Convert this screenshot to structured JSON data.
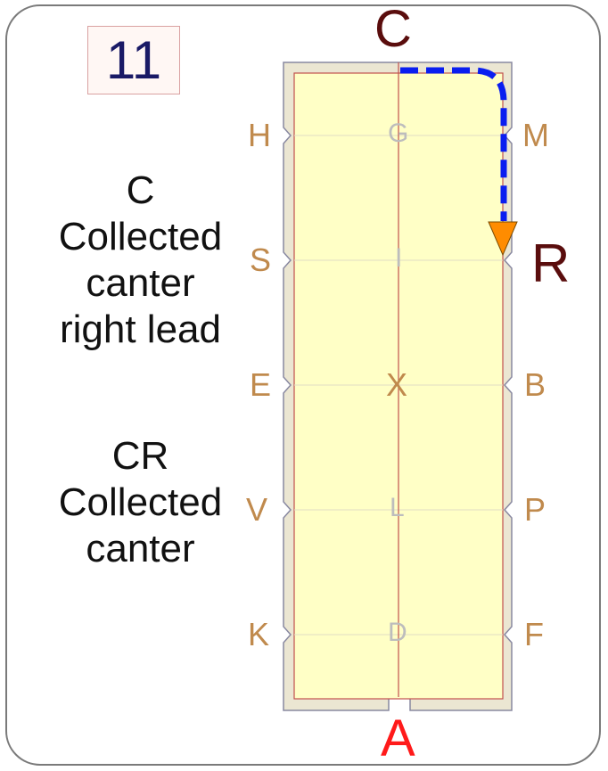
{
  "card_number": "11",
  "movement_1": {
    "code": "C",
    "lines": [
      "Collected",
      "canter",
      "right lead"
    ]
  },
  "movement_2": {
    "code": "CR",
    "lines": [
      "Collected",
      "canter"
    ]
  },
  "arena": {
    "top_letter": "C",
    "bottom_letter": "A",
    "center_letters": [
      "G",
      "I",
      "X",
      "L",
      "D"
    ],
    "left_letters": [
      "H",
      "S",
      "E",
      "V",
      "K"
    ],
    "right_letters": [
      "M",
      "R",
      "B",
      "P",
      "F"
    ]
  },
  "colors": {
    "arena_fill": "#ffffc6",
    "letter": "#c08a4d",
    "path": "#0a1ef0",
    "arrow": "#ff8c00"
  }
}
